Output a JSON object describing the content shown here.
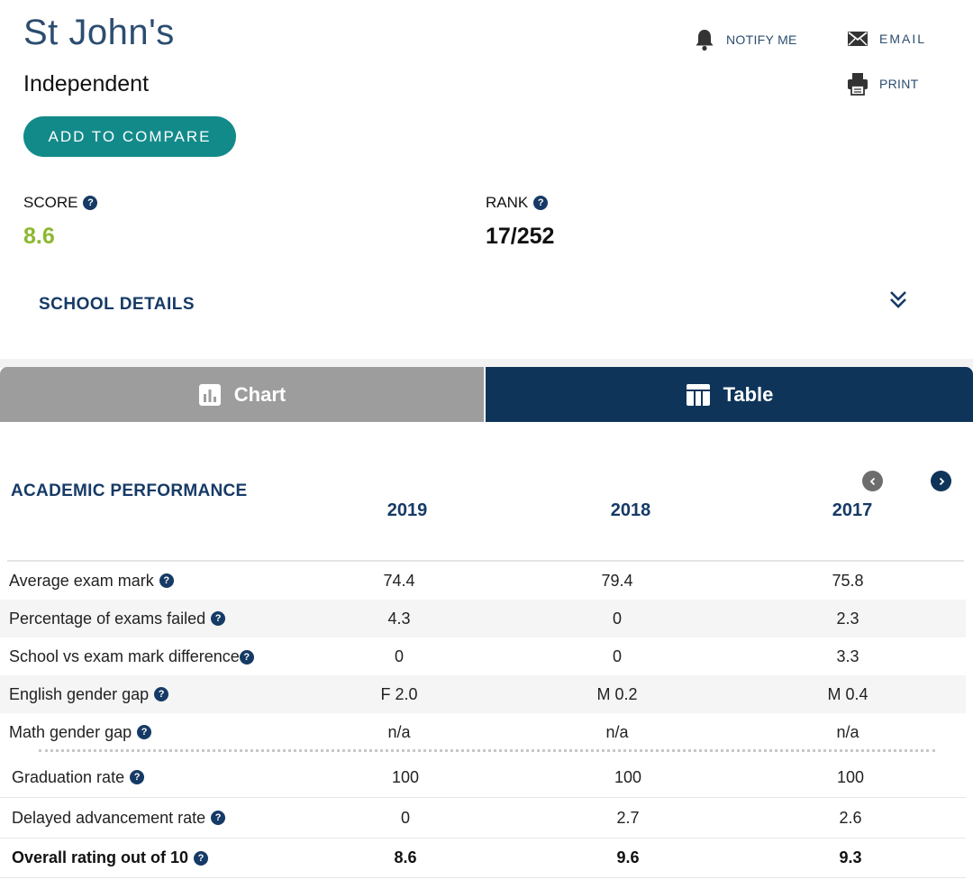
{
  "header": {
    "title": "St John's",
    "subtitle": "Independent",
    "compare_label": "ADD TO COMPARE",
    "notify_label": "NOTIFY ME",
    "email_label": "EMAIL",
    "print_label": "PRINT"
  },
  "stats": {
    "score_label": "SCORE",
    "score_value": "8.6",
    "rank_label": "RANK",
    "rank_value": "17/252",
    "score_color": "#8cb830"
  },
  "details": {
    "label": "SCHOOL DETAILS"
  },
  "tabs": [
    {
      "label": "Chart",
      "icon": "bar-chart-icon",
      "active": false
    },
    {
      "label": "Table",
      "icon": "table-icon",
      "active": true
    }
  ],
  "table": {
    "section_title": "ACADEMIC PERFORMANCE",
    "years": [
      "2019",
      "2018",
      "2017"
    ],
    "rows": [
      {
        "label": "Average exam mark",
        "values": [
          "74.4",
          "79.4",
          "75.8"
        ]
      },
      {
        "label": "Percentage of exams failed",
        "values": [
          "4.3",
          "0",
          "2.3"
        ]
      },
      {
        "label": "School vs exam mark difference",
        "values": [
          "0",
          "0",
          "3.3"
        ]
      },
      {
        "label": "English gender gap",
        "values": [
          "F 2.0",
          "M 0.2",
          "M 0.4"
        ]
      },
      {
        "label": "Math gender gap",
        "values": [
          "n/a",
          "n/a",
          "n/a"
        ]
      }
    ],
    "rows2": [
      {
        "label": "Graduation rate",
        "values": [
          "100",
          "100",
          "100"
        ]
      },
      {
        "label": "Delayed advancement rate",
        "values": [
          "0",
          "2.7",
          "2.6"
        ]
      },
      {
        "label": "Overall rating out of 10",
        "values": [
          "8.6",
          "9.6",
          "9.3"
        ]
      }
    ]
  },
  "colors": {
    "brand_navy": "#0f3459",
    "teal": "#138a8a",
    "score_green": "#8cb830"
  }
}
